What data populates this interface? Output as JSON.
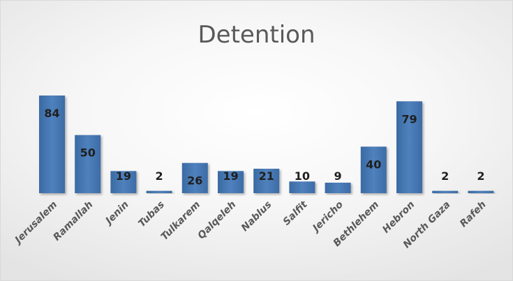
{
  "chart_data": {
    "type": "bar",
    "title": "Detention",
    "xlabel": "",
    "ylabel": "",
    "categories": [
      "Jerusalem",
      "Ramallah",
      "Jenin",
      "Tubas",
      "Tulkarem",
      "Qalqeleh",
      "Nablus",
      "Salfit",
      "Jericho",
      "Bethlehem",
      "Hebron",
      "North Gaza",
      "Rafeh"
    ],
    "values": [
      84,
      50,
      19,
      2,
      26,
      19,
      21,
      10,
      9,
      40,
      79,
      2,
      2
    ],
    "ylim": [
      0,
      84
    ],
    "grid": false,
    "legend": "none",
    "bar_color": "#4f81bd",
    "data_labels": true
  }
}
